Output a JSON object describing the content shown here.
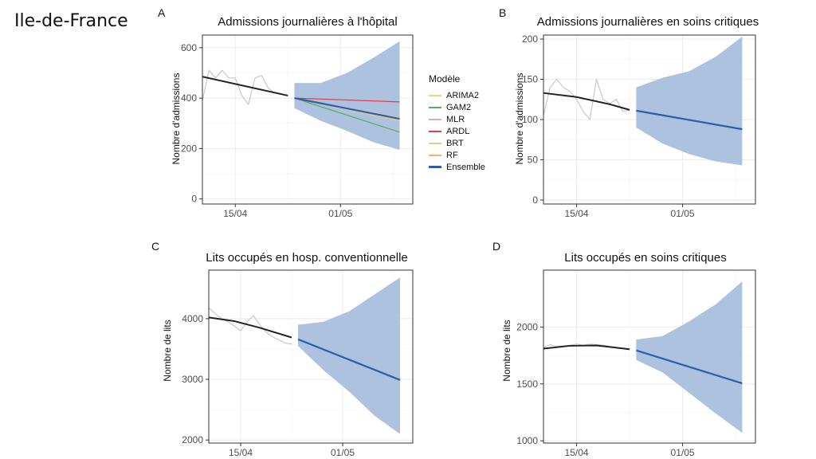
{
  "region_label": "Ile-de-France",
  "colors": {
    "band": "#a9bfdc",
    "ensemble": "#2c5fa8",
    "history_fit": "#222222",
    "observed": "#c8c8c8",
    "ARIMA2": "#e6d58a",
    "GAM2": "#5aab5a",
    "MLR": "#e3a9c4",
    "ARDL": "#d2454f",
    "BRT": "#e8c98a",
    "RF": "#f0b46a"
  },
  "legend": {
    "title": "Modèle",
    "items": [
      "ARIMA2",
      "GAM2",
      "MLR",
      "ARDL",
      "BRT",
      "RF",
      "Ensemble"
    ]
  },
  "chart_data": [
    {
      "letter": "A",
      "type": "line",
      "title": "Admissions journalières à l'hôpital",
      "ylabel": "Nombre d'admissions",
      "ylim": [
        -20,
        650
      ],
      "yticks": [
        0,
        200,
        400,
        600
      ],
      "xlim": [
        0,
        32
      ],
      "xticks": [
        {
          "x": 5,
          "label": "15/04"
        },
        {
          "x": 21,
          "label": "01/05"
        }
      ],
      "observed": {
        "x": [
          0,
          1,
          2,
          3,
          4,
          5,
          6,
          7,
          8,
          9,
          10,
          11,
          12,
          13
        ],
        "y": [
          390,
          510,
          480,
          510,
          480,
          480,
          410,
          375,
          480,
          490,
          440,
          420,
          415,
          410
        ]
      },
      "history_fit": {
        "x": [
          0,
          13
        ],
        "y": [
          485,
          410
        ]
      },
      "band": {
        "x": [
          14,
          18,
          22,
          26,
          30
        ],
        "lower": [
          360,
          310,
          270,
          225,
          195
        ],
        "upper": [
          460,
          460,
          500,
          560,
          625
        ]
      },
      "ensemble": {
        "x": [
          14,
          30
        ],
        "y": [
          400,
          318
        ]
      },
      "models": [
        {
          "name": "ARIMA2",
          "x": [
            14,
            30
          ],
          "y": [
            400,
            322
          ]
        },
        {
          "name": "GAM2",
          "x": [
            14,
            30
          ],
          "y": [
            400,
            265
          ]
        },
        {
          "name": "MLR",
          "x": [
            14,
            30
          ],
          "y": [
            400,
            380
          ]
        },
        {
          "name": "ARDL",
          "x": [
            14,
            30
          ],
          "y": [
            400,
            385
          ]
        },
        {
          "name": "BRT",
          "x": [
            14,
            30
          ],
          "y": [
            400,
            310
          ]
        },
        {
          "name": "RF",
          "x": [
            14,
            30
          ],
          "y": [
            400,
            315
          ]
        }
      ]
    },
    {
      "letter": "B",
      "type": "line",
      "title": "Admissions journalières en soins critiques",
      "ylabel": "Nombre d'admissions",
      "ylim": [
        -5,
        205
      ],
      "yticks": [
        0,
        50,
        100,
        150,
        200
      ],
      "xlim": [
        0,
        32
      ],
      "xticks": [
        {
          "x": 5,
          "label": "15/04"
        },
        {
          "x": 21,
          "label": "01/05"
        }
      ],
      "observed": {
        "x": [
          0,
          1,
          2,
          3,
          4,
          5,
          6,
          7,
          8,
          9,
          10,
          11,
          12,
          13
        ],
        "y": [
          105,
          140,
          150,
          140,
          135,
          125,
          110,
          100,
          150,
          125,
          120,
          125,
          110,
          112
        ]
      },
      "history_fit": {
        "x": [
          0,
          5,
          10,
          13
        ],
        "y": [
          133,
          128,
          119,
          112
        ]
      },
      "band": {
        "x": [
          14,
          18,
          22,
          26,
          30
        ],
        "lower": [
          90,
          70,
          57,
          48,
          43
        ],
        "upper": [
          140,
          152,
          160,
          178,
          203
        ]
      },
      "ensemble": {
        "x": [
          14,
          30
        ],
        "y": [
          111,
          88
        ]
      },
      "models": []
    },
    {
      "letter": "C",
      "type": "line",
      "title": "Lits occupés en hosp. conventionnelle",
      "ylabel": "Nombre de lits",
      "ylim": [
        1950,
        4800
      ],
      "yticks": [
        2000,
        3000,
        4000
      ],
      "xlim": [
        0,
        32
      ],
      "xticks": [
        {
          "x": 5,
          "label": "15/04"
        },
        {
          "x": 21,
          "label": "01/05"
        }
      ],
      "observed": {
        "x": [
          0,
          1,
          2,
          3,
          4,
          5,
          6,
          7,
          8,
          9,
          10,
          11,
          12,
          13
        ],
        "y": [
          4180,
          4080,
          4000,
          3950,
          3880,
          3800,
          3950,
          4050,
          3900,
          3780,
          3700,
          3650,
          3600,
          3580
        ]
      },
      "history_fit": {
        "x": [
          0,
          4,
          8,
          13
        ],
        "y": [
          4020,
          3960,
          3850,
          3690
        ]
      },
      "band": {
        "x": [
          14,
          18,
          22,
          26,
          30
        ],
        "lower": [
          3550,
          3150,
          2800,
          2400,
          2100
        ],
        "upper": [
          3900,
          3950,
          4120,
          4400,
          4680
        ]
      },
      "ensemble": {
        "x": [
          14,
          30
        ],
        "y": [
          3660,
          2990
        ]
      },
      "models": []
    },
    {
      "letter": "D",
      "type": "line",
      "title": "Lits occupés en soins critiques",
      "ylabel": "Nombre de lits",
      "ylim": [
        980,
        2500
      ],
      "yticks": [
        1000,
        1500,
        2000
      ],
      "xlim": [
        0,
        32
      ],
      "xticks": [
        {
          "x": 5,
          "label": "15/04"
        },
        {
          "x": 21,
          "label": "01/05"
        }
      ],
      "observed": {
        "x": [
          0,
          1,
          2,
          3,
          4,
          5,
          6,
          7,
          8,
          9,
          10,
          11,
          12,
          13
        ],
        "y": [
          1820,
          1845,
          1830,
          1835,
          1840,
          1850,
          1840,
          1850,
          1845,
          1840,
          1830,
          1820,
          1810,
          1800
        ]
      },
      "history_fit": {
        "x": [
          0,
          4,
          8,
          13
        ],
        "y": [
          1810,
          1835,
          1838,
          1805
        ]
      },
      "band": {
        "x": [
          14,
          18,
          22,
          26,
          30
        ],
        "lower": [
          1710,
          1600,
          1420,
          1240,
          1070
        ],
        "upper": [
          1890,
          1920,
          2050,
          2200,
          2400
        ]
      },
      "ensemble": {
        "x": [
          14,
          30
        ],
        "y": [
          1795,
          1505
        ]
      },
      "models": []
    }
  ]
}
